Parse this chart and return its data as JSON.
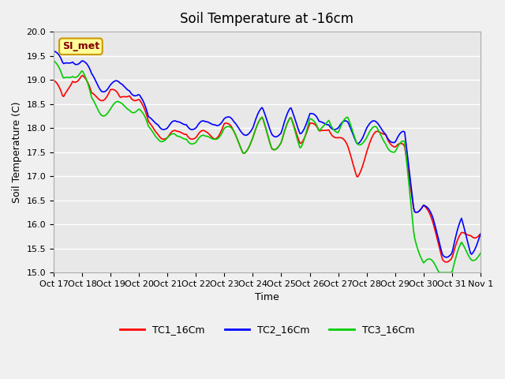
{
  "title": "Soil Temperature at -16cm",
  "xlabel": "Time",
  "ylabel": "Soil Temperature (C)",
  "ylim": [
    15.0,
    20.0
  ],
  "yticks": [
    15.0,
    15.5,
    16.0,
    16.5,
    17.0,
    17.5,
    18.0,
    18.5,
    19.0,
    19.5,
    20.0
  ],
  "xtick_labels": [
    "Oct 17",
    "Oct 18",
    "Oct 19",
    "Oct 20",
    "Oct 21",
    "Oct 22",
    "Oct 23",
    "Oct 24",
    "Oct 25",
    "Oct 26",
    "Oct 27",
    "Oct 28",
    "Oct 29",
    "Oct 30",
    "Oct 31",
    "Nov 1"
  ],
  "colors": {
    "TC1": "#ff0000",
    "TC2": "#0000ff",
    "TC3": "#00cc00"
  },
  "legend_labels": [
    "TC1_16Cm",
    "TC2_16Cm",
    "TC3_16Cm"
  ],
  "watermark_text": "SI_met",
  "watermark_bg": "#ffff99",
  "watermark_border": "#cc9900",
  "plot_bg": "#e8e8e8",
  "fig_bg": "#f0f0f0",
  "grid_color": "#ffffff",
  "title_fontsize": 12,
  "label_fontsize": 9,
  "tick_fontsize": 8,
  "line_width": 1.2
}
